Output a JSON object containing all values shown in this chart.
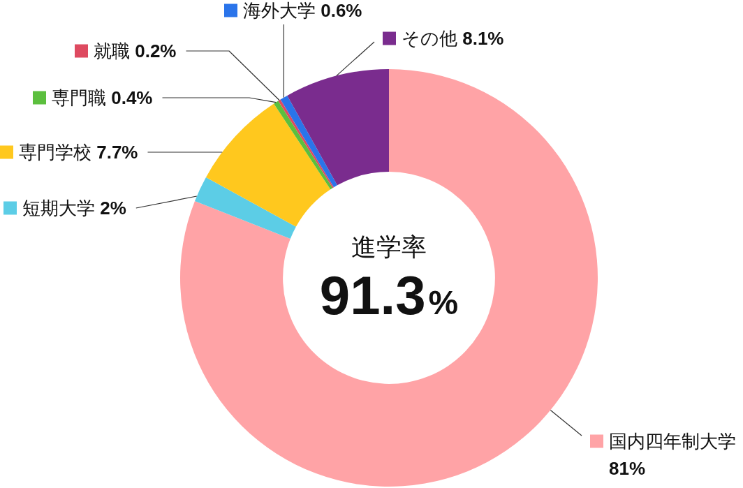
{
  "chart_data": {
    "type": "donut",
    "categories": [
      "国内四年制大学",
      "短期大学",
      "専門学校",
      "専門職",
      "就職",
      "海外大学",
      "その他"
    ],
    "values": [
      81,
      2,
      7.7,
      0.4,
      0.2,
      0.6,
      8.1
    ],
    "colors": [
      "#ffa3a6",
      "#5ccde6",
      "#ffc81e",
      "#5cbf3e",
      "#de4a60",
      "#2a74ea",
      "#7a2c8e"
    ],
    "value_labels": [
      "81%",
      "2%",
      "7.7%",
      "0.4%",
      "0.2%",
      "0.6%",
      "8.1%"
    ],
    "legend": "left",
    "annotations": [
      "進学率",
      "91.3%"
    ]
  }
}
